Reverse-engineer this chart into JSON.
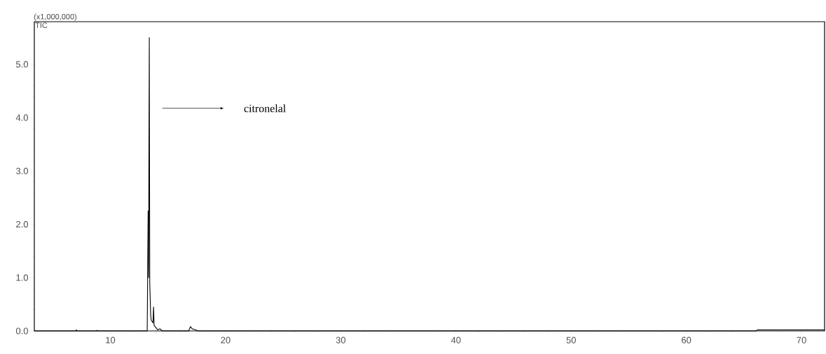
{
  "chart_data": {
    "type": "line",
    "ylabel": "(x1,000,000)",
    "xlim": [
      3.4,
      72
    ],
    "ylim": [
      0,
      5.8
    ],
    "xticks": [
      10,
      20,
      30,
      40,
      50,
      60,
      70
    ],
    "yticks": [
      {
        "value": 0,
        "label": "0.0"
      },
      {
        "value": 1,
        "label": "1.0"
      },
      {
        "value": 2,
        "label": "2.0"
      },
      {
        "value": 3,
        "label": "3.0"
      },
      {
        "value": 4,
        "label": "4.0"
      },
      {
        "value": 5,
        "label": "5.0"
      }
    ],
    "marker": "none",
    "line_style": "solid",
    "series": [
      {
        "name": "TIC",
        "color": "#000000",
        "x": [
          3.4,
          7.0,
          7.05,
          7.1,
          8.8,
          8.85,
          8.9,
          13.2,
          13.28,
          13.32,
          13.38,
          13.42,
          13.5,
          13.55,
          13.7,
          13.75,
          13.8,
          14.0,
          14.1,
          14.3,
          14.5,
          16.8,
          16.95,
          17.1,
          17.4,
          17.6,
          66.0,
          66.2,
          72.0
        ],
        "values": [
          0.0,
          0.0,
          0.02,
          0.0,
          0.0,
          0.01,
          0.0,
          0.0,
          2.25,
          1.0,
          5.5,
          0.9,
          0.3,
          0.2,
          0.15,
          0.45,
          0.1,
          0.05,
          0.02,
          0.04,
          0.0,
          0.0,
          0.08,
          0.04,
          0.02,
          0.0,
          0.0,
          0.02,
          0.02
        ]
      }
    ],
    "annotations": [
      "citronelal"
    ]
  }
}
